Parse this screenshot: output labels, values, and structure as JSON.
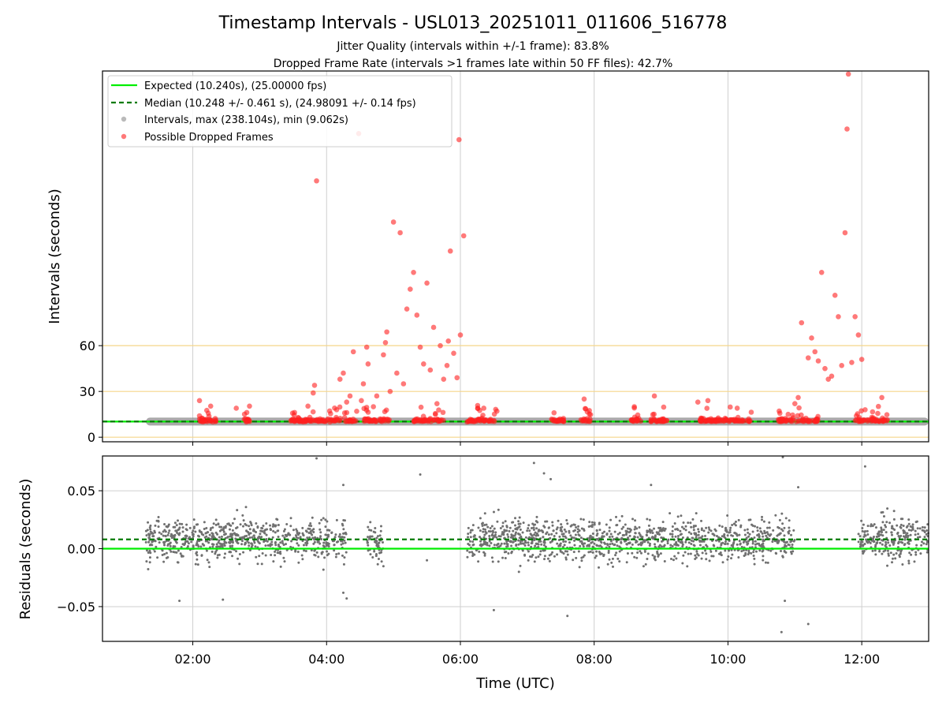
{
  "figure": {
    "title": "Timestamp Intervals - USL013_20251011_011606_516778",
    "subtitle_1": "Jitter Quality (intervals within +/-1 frame): 83.8%",
    "subtitle_2": "Dropped Frame Rate (intervals >1 frames late within 50 FF files): 42.7%"
  },
  "colors": {
    "expected": "#00ee00",
    "median": "#007a00",
    "intervals": "#8c8c8c",
    "dropped": "#ff2020",
    "threshold": "#f5d68a",
    "grid": "#cfcfcf"
  },
  "chart_data": [
    {
      "type": "scatter",
      "panel": "intervals",
      "ylabel": "Intervals (seconds)",
      "xlim_hours": [
        0.65,
        13.0
      ],
      "ylim": [
        -3,
        240
      ],
      "y_ticks": [
        0,
        30,
        60
      ],
      "x_grid_hours": [
        2,
        4,
        6,
        8,
        10,
        12
      ],
      "threshold_lines": [
        30,
        60
      ],
      "expected_value": 10.24,
      "median_value": 10.248,
      "legend": {
        "placement": "upper-left",
        "entries": [
          "Expected (10.240s), (25.00000 fps)",
          "Median (10.248 +/- 0.461 s), (24.98091 +/- 0.14 fps)",
          "Intervals, max (238.104s), min (9.062s)",
          "Possible Dropped Frames"
        ]
      },
      "interval_coverage_hours": [
        [
          1.3,
          13.0
        ]
      ],
      "dropped_frames_sample": [
        [
          2.1,
          24
        ],
        [
          2.1,
          14
        ],
        [
          2.15,
          10
        ],
        [
          2.3,
          10
        ],
        [
          2.65,
          19
        ],
        [
          2.8,
          10
        ],
        [
          3.5,
          12
        ],
        [
          3.65,
          10
        ],
        [
          3.75,
          13
        ],
        [
          3.8,
          29
        ],
        [
          3.82,
          34
        ],
        [
          3.85,
          168
        ],
        [
          3.9,
          11
        ],
        [
          4.05,
          10
        ],
        [
          4.15,
          18
        ],
        [
          4.2,
          38
        ],
        [
          4.25,
          42
        ],
        [
          4.3,
          23
        ],
        [
          4.35,
          27
        ],
        [
          4.4,
          56
        ],
        [
          4.45,
          17
        ],
        [
          4.48,
          199
        ],
        [
          4.52,
          24
        ],
        [
          4.55,
          35
        ],
        [
          4.6,
          59
        ],
        [
          4.62,
          48
        ],
        [
          4.7,
          20
        ],
        [
          4.75,
          27
        ],
        [
          4.8,
          12
        ],
        [
          4.85,
          54
        ],
        [
          4.88,
          62
        ],
        [
          4.9,
          69
        ],
        [
          4.95,
          30
        ],
        [
          5.0,
          141
        ],
        [
          5.05,
          42
        ],
        [
          5.1,
          134
        ],
        [
          5.15,
          35
        ],
        [
          5.2,
          84
        ],
        [
          5.25,
          97
        ],
        [
          5.3,
          108
        ],
        [
          5.35,
          80
        ],
        [
          5.4,
          59
        ],
        [
          5.45,
          48
        ],
        [
          5.5,
          101
        ],
        [
          5.55,
          44
        ],
        [
          5.6,
          72
        ],
        [
          5.65,
          22
        ],
        [
          5.7,
          60
        ],
        [
          5.75,
          38
        ],
        [
          5.8,
          47
        ],
        [
          5.82,
          63
        ],
        [
          5.85,
          122
        ],
        [
          5.9,
          55
        ],
        [
          5.95,
          39
        ],
        [
          5.98,
          195
        ],
        [
          6.0,
          67
        ],
        [
          6.05,
          132
        ],
        [
          6.1,
          10
        ],
        [
          6.35,
          19
        ],
        [
          7.4,
          16
        ],
        [
          7.85,
          25
        ],
        [
          8.6,
          20
        ],
        [
          8.9,
          27
        ],
        [
          9.55,
          23
        ],
        [
          9.7,
          24
        ],
        [
          10.15,
          13
        ],
        [
          10.9,
          15
        ],
        [
          11.0,
          22
        ],
        [
          11.05,
          26
        ],
        [
          11.1,
          75
        ],
        [
          11.2,
          52
        ],
        [
          11.25,
          65
        ],
        [
          11.3,
          56
        ],
        [
          11.35,
          50
        ],
        [
          11.4,
          108
        ],
        [
          11.45,
          45
        ],
        [
          11.5,
          38
        ],
        [
          11.55,
          40
        ],
        [
          11.6,
          93
        ],
        [
          11.65,
          79
        ],
        [
          11.7,
          47
        ],
        [
          11.75,
          134
        ],
        [
          11.78,
          202
        ],
        [
          11.8,
          238
        ],
        [
          11.85,
          49
        ],
        [
          11.9,
          79
        ],
        [
          11.95,
          67
        ],
        [
          12.0,
          51
        ],
        [
          12.05,
          18
        ],
        [
          12.15,
          13
        ],
        [
          12.3,
          26
        ]
      ]
    },
    {
      "type": "scatter",
      "panel": "residuals",
      "xlabel": "Time (UTC)",
      "ylabel": "Residuals (seconds)",
      "xlim_hours": [
        0.65,
        13.0
      ],
      "ylim": [
        -0.08,
        0.08
      ],
      "y_ticks": [
        -0.05,
        0.0,
        0.05
      ],
      "y_tick_labels": [
        "−0.05",
        "0.00",
        "0.05"
      ],
      "x_ticks_hours": [
        2,
        4,
        6,
        8,
        10,
        12
      ],
      "x_tick_labels": [
        "02:00",
        "04:00",
        "06:00",
        "08:00",
        "10:00",
        "12:00"
      ],
      "expected_residual": 0.0,
      "median_residual": 0.008,
      "point_segments": [
        {
          "range_hours": [
            1.3,
            4.3
          ],
          "mean": 0.008,
          "spread": 0.02
        },
        {
          "range_hours": [
            4.6,
            4.85
          ],
          "mean": 0.005,
          "spread": 0.02
        },
        {
          "range_hours": [
            6.1,
            11.0
          ],
          "mean": 0.008,
          "spread": 0.02
        },
        {
          "range_hours": [
            11.95,
            13.0
          ],
          "mean": 0.008,
          "spread": 0.02
        }
      ],
      "outliers": [
        [
          3.85,
          0.078
        ],
        [
          4.25,
          0.055
        ],
        [
          4.3,
          -0.043
        ],
        [
          4.25,
          -0.038
        ],
        [
          5.4,
          0.064
        ],
        [
          5.5,
          -0.01
        ],
        [
          7.1,
          0.074
        ],
        [
          7.25,
          0.065
        ],
        [
          7.35,
          0.06
        ],
        [
          7.6,
          -0.058
        ],
        [
          10.82,
          0.079
        ],
        [
          10.8,
          -0.072
        ],
        [
          10.85,
          -0.045
        ],
        [
          11.2,
          -0.065
        ],
        [
          11.05,
          0.053
        ],
        [
          12.05,
          0.071
        ],
        [
          6.5,
          -0.053
        ],
        [
          8.85,
          0.055
        ],
        [
          1.8,
          -0.045
        ],
        [
          2.45,
          -0.044
        ]
      ]
    }
  ]
}
